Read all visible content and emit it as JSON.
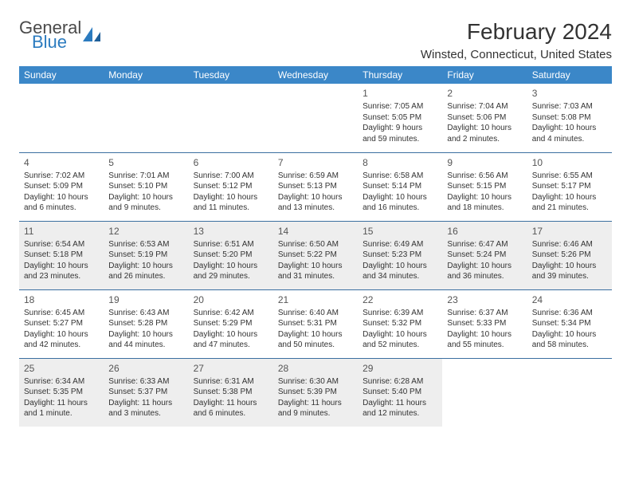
{
  "logo": {
    "text1": "General",
    "text2": "Blue",
    "accent_color": "#2b7bbf"
  },
  "title": "February 2024",
  "location": "Winsted, Connecticut, United States",
  "header_bg": "#3b87c8",
  "day_names": [
    "Sunday",
    "Monday",
    "Tuesday",
    "Wednesday",
    "Thursday",
    "Friday",
    "Saturday"
  ],
  "weeks": [
    [
      null,
      null,
      null,
      null,
      {
        "n": "1",
        "sr": "Sunrise: 7:05 AM",
        "ss": "Sunset: 5:05 PM",
        "dl": "Daylight: 9 hours and 59 minutes."
      },
      {
        "n": "2",
        "sr": "Sunrise: 7:04 AM",
        "ss": "Sunset: 5:06 PM",
        "dl": "Daylight: 10 hours and 2 minutes."
      },
      {
        "n": "3",
        "sr": "Sunrise: 7:03 AM",
        "ss": "Sunset: 5:08 PM",
        "dl": "Daylight: 10 hours and 4 minutes."
      }
    ],
    [
      {
        "n": "4",
        "sr": "Sunrise: 7:02 AM",
        "ss": "Sunset: 5:09 PM",
        "dl": "Daylight: 10 hours and 6 minutes."
      },
      {
        "n": "5",
        "sr": "Sunrise: 7:01 AM",
        "ss": "Sunset: 5:10 PM",
        "dl": "Daylight: 10 hours and 9 minutes."
      },
      {
        "n": "6",
        "sr": "Sunrise: 7:00 AM",
        "ss": "Sunset: 5:12 PM",
        "dl": "Daylight: 10 hours and 11 minutes."
      },
      {
        "n": "7",
        "sr": "Sunrise: 6:59 AM",
        "ss": "Sunset: 5:13 PM",
        "dl": "Daylight: 10 hours and 13 minutes."
      },
      {
        "n": "8",
        "sr": "Sunrise: 6:58 AM",
        "ss": "Sunset: 5:14 PM",
        "dl": "Daylight: 10 hours and 16 minutes."
      },
      {
        "n": "9",
        "sr": "Sunrise: 6:56 AM",
        "ss": "Sunset: 5:15 PM",
        "dl": "Daylight: 10 hours and 18 minutes."
      },
      {
        "n": "10",
        "sr": "Sunrise: 6:55 AM",
        "ss": "Sunset: 5:17 PM",
        "dl": "Daylight: 10 hours and 21 minutes."
      }
    ],
    [
      {
        "n": "11",
        "sr": "Sunrise: 6:54 AM",
        "ss": "Sunset: 5:18 PM",
        "dl": "Daylight: 10 hours and 23 minutes."
      },
      {
        "n": "12",
        "sr": "Sunrise: 6:53 AM",
        "ss": "Sunset: 5:19 PM",
        "dl": "Daylight: 10 hours and 26 minutes."
      },
      {
        "n": "13",
        "sr": "Sunrise: 6:51 AM",
        "ss": "Sunset: 5:20 PM",
        "dl": "Daylight: 10 hours and 29 minutes."
      },
      {
        "n": "14",
        "sr": "Sunrise: 6:50 AM",
        "ss": "Sunset: 5:22 PM",
        "dl": "Daylight: 10 hours and 31 minutes."
      },
      {
        "n": "15",
        "sr": "Sunrise: 6:49 AM",
        "ss": "Sunset: 5:23 PM",
        "dl": "Daylight: 10 hours and 34 minutes."
      },
      {
        "n": "16",
        "sr": "Sunrise: 6:47 AM",
        "ss": "Sunset: 5:24 PM",
        "dl": "Daylight: 10 hours and 36 minutes."
      },
      {
        "n": "17",
        "sr": "Sunrise: 6:46 AM",
        "ss": "Sunset: 5:26 PM",
        "dl": "Daylight: 10 hours and 39 minutes."
      }
    ],
    [
      {
        "n": "18",
        "sr": "Sunrise: 6:45 AM",
        "ss": "Sunset: 5:27 PM",
        "dl": "Daylight: 10 hours and 42 minutes."
      },
      {
        "n": "19",
        "sr": "Sunrise: 6:43 AM",
        "ss": "Sunset: 5:28 PM",
        "dl": "Daylight: 10 hours and 44 minutes."
      },
      {
        "n": "20",
        "sr": "Sunrise: 6:42 AM",
        "ss": "Sunset: 5:29 PM",
        "dl": "Daylight: 10 hours and 47 minutes."
      },
      {
        "n": "21",
        "sr": "Sunrise: 6:40 AM",
        "ss": "Sunset: 5:31 PM",
        "dl": "Daylight: 10 hours and 50 minutes."
      },
      {
        "n": "22",
        "sr": "Sunrise: 6:39 AM",
        "ss": "Sunset: 5:32 PM",
        "dl": "Daylight: 10 hours and 52 minutes."
      },
      {
        "n": "23",
        "sr": "Sunrise: 6:37 AM",
        "ss": "Sunset: 5:33 PM",
        "dl": "Daylight: 10 hours and 55 minutes."
      },
      {
        "n": "24",
        "sr": "Sunrise: 6:36 AM",
        "ss": "Sunset: 5:34 PM",
        "dl": "Daylight: 10 hours and 58 minutes."
      }
    ],
    [
      {
        "n": "25",
        "sr": "Sunrise: 6:34 AM",
        "ss": "Sunset: 5:35 PM",
        "dl": "Daylight: 11 hours and 1 minute."
      },
      {
        "n": "26",
        "sr": "Sunrise: 6:33 AM",
        "ss": "Sunset: 5:37 PM",
        "dl": "Daylight: 11 hours and 3 minutes."
      },
      {
        "n": "27",
        "sr": "Sunrise: 6:31 AM",
        "ss": "Sunset: 5:38 PM",
        "dl": "Daylight: 11 hours and 6 minutes."
      },
      {
        "n": "28",
        "sr": "Sunrise: 6:30 AM",
        "ss": "Sunset: 5:39 PM",
        "dl": "Daylight: 11 hours and 9 minutes."
      },
      {
        "n": "29",
        "sr": "Sunrise: 6:28 AM",
        "ss": "Sunset: 5:40 PM",
        "dl": "Daylight: 11 hours and 12 minutes."
      },
      null,
      null
    ]
  ]
}
